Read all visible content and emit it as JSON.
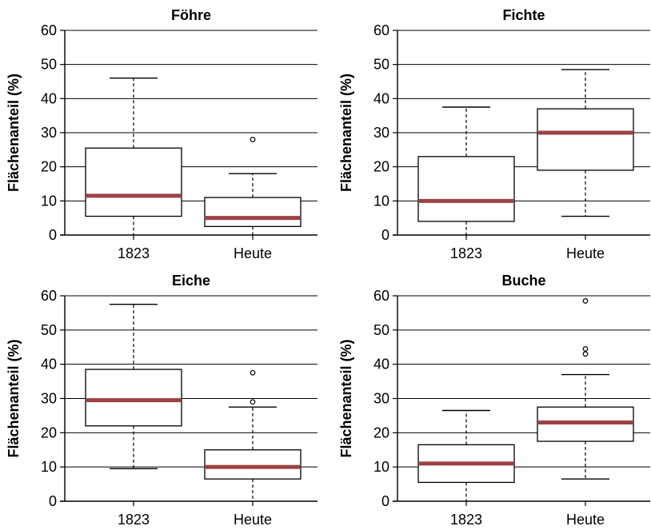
{
  "chart_data": [
    {
      "type": "boxplot",
      "title": "Föhre",
      "ylabel": "Flächenanteil (%)",
      "categories": [
        "1823",
        "Heute"
      ],
      "ylim": [
        0,
        60
      ],
      "yticks": [
        "0",
        "10",
        "20",
        "30",
        "40",
        "50",
        "60"
      ],
      "grid": true,
      "boxes": [
        {
          "whisker_low": 0,
          "q1": 5.5,
          "median": 11.5,
          "q3": 25.5,
          "whisker_high": 46,
          "outliers": []
        },
        {
          "whisker_low": 0,
          "q1": 2.5,
          "median": 5,
          "q3": 11,
          "whisker_high": 18,
          "outliers": [
            28
          ]
        }
      ]
    },
    {
      "type": "boxplot",
      "title": "Fichte",
      "ylabel": "Flächenanteil (%)",
      "categories": [
        "1823",
        "Heute"
      ],
      "ylim": [
        0,
        60
      ],
      "yticks": [
        "0",
        "10",
        "20",
        "30",
        "40",
        "50",
        "60"
      ],
      "grid": true,
      "boxes": [
        {
          "whisker_low": 0,
          "q1": 4,
          "median": 10,
          "q3": 23,
          "whisker_high": 37.5,
          "outliers": []
        },
        {
          "whisker_low": 5.5,
          "q1": 19,
          "median": 30,
          "q3": 37,
          "whisker_high": 48.5,
          "outliers": []
        }
      ]
    },
    {
      "type": "boxplot",
      "title": "Eiche",
      "ylabel": "Flächenanteil (%)",
      "categories": [
        "1823",
        "Heute"
      ],
      "ylim": [
        0,
        60
      ],
      "yticks": [
        "0",
        "10",
        "20",
        "30",
        "40",
        "50",
        "60"
      ],
      "grid": true,
      "boxes": [
        {
          "whisker_low": 9.5,
          "q1": 22,
          "median": 29.5,
          "q3": 38.5,
          "whisker_high": 57.5,
          "outliers": []
        },
        {
          "whisker_low": 0,
          "q1": 6.5,
          "median": 10,
          "q3": 15,
          "whisker_high": 27.5,
          "outliers": [
            29,
            37.5
          ]
        }
      ]
    },
    {
      "type": "boxplot",
      "title": "Buche",
      "ylabel": "Flächenanteil (%)",
      "categories": [
        "1823",
        "Heute"
      ],
      "ylim": [
        0,
        60
      ],
      "yticks": [
        "0",
        "10",
        "20",
        "30",
        "40",
        "50",
        "60"
      ],
      "grid": true,
      "boxes": [
        {
          "whisker_low": 0,
          "q1": 5.5,
          "median": 11,
          "q3": 16.5,
          "whisker_high": 26.5,
          "outliers": []
        },
        {
          "whisker_low": 6.5,
          "q1": 17.5,
          "median": 23,
          "q3": 27.5,
          "whisker_high": 37,
          "outliers": [
            43,
            44.5,
            58.5
          ]
        }
      ]
    }
  ],
  "colors": {
    "median": "#9e4144",
    "box": "#000000",
    "grid": "#000000"
  }
}
